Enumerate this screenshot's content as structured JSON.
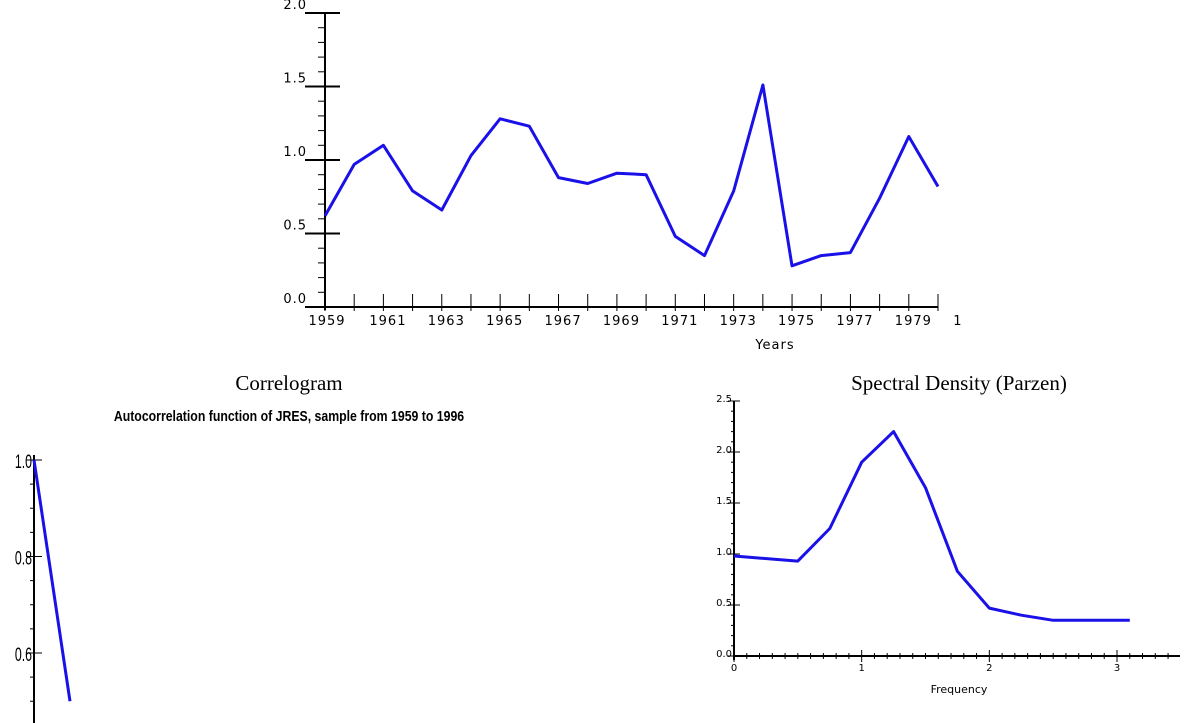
{
  "chart_data": [
    {
      "type": "line",
      "title": "",
      "xlabel": "Years",
      "ylabel": "",
      "x": [
        1959,
        1960,
        1961,
        1962,
        1963,
        1964,
        1965,
        1966,
        1967,
        1968,
        1969,
        1970,
        1971,
        1972,
        1973,
        1974,
        1975,
        1976,
        1977,
        1978,
        1979,
        1980
      ],
      "values": [
        0.62,
        0.97,
        1.1,
        0.79,
        0.66,
        1.03,
        1.28,
        1.23,
        0.88,
        0.84,
        0.91,
        0.9,
        0.48,
        0.35,
        0.79,
        1.51,
        0.28,
        0.35,
        0.37,
        0.74,
        1.16,
        0.82
      ],
      "ylim": [
        0.0,
        2.0
      ],
      "xlim": [
        1959,
        1980
      ],
      "yticks": [
        "0.0",
        "0.5",
        "1.0",
        "1.5",
        "2.0"
      ],
      "xticks": [
        "1959",
        "1961",
        "1963",
        "1965",
        "1967",
        "1969",
        "1971",
        "1973",
        "1975",
        "1977",
        "1979",
        "1"
      ],
      "color": "#1a10e8"
    },
    {
      "type": "line",
      "title": "Correlogram",
      "subtitle": "Autocorrelation function of JRES, sample from 1959 to 1996",
      "xlabel": "",
      "ylabel": "",
      "x": [
        0,
        1
      ],
      "values": [
        1.0,
        0.5
      ],
      "ylim": [
        0.5,
        1.0
      ],
      "yticks": [
        "0.6",
        "0.8",
        "1.0"
      ],
      "color": "#1a10e8"
    },
    {
      "type": "line",
      "title": "Spectral Density (Parzen)",
      "xlabel": "Frequency",
      "ylabel": "",
      "x": [
        0.0,
        0.5,
        0.75,
        1.0,
        1.25,
        1.5,
        1.75,
        2.0,
        2.25,
        2.5,
        2.75,
        3.1
      ],
      "values": [
        0.98,
        0.93,
        1.25,
        1.9,
        2.2,
        1.65,
        0.83,
        0.47,
        0.4,
        0.35,
        0.35,
        0.35
      ],
      "ylim": [
        0.0,
        2.5
      ],
      "xlim": [
        0,
        3.5
      ],
      "yticks": [
        "0.0",
        "0.5",
        "1.0",
        "1.5",
        "2.0",
        "2.5"
      ],
      "xticks": [
        "0",
        "1",
        "2",
        "3"
      ],
      "color": "#1a10e8"
    }
  ]
}
